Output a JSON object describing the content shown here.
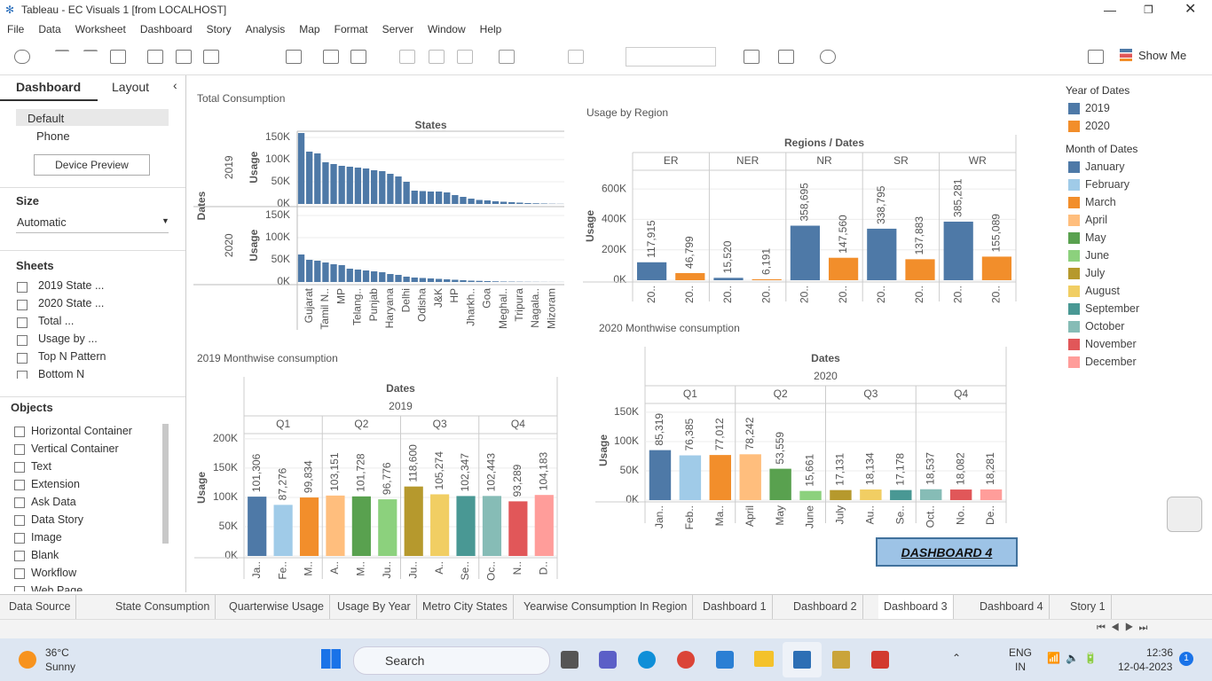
{
  "window": {
    "title": "Tableau - EC Visuals 1 [from LOCALHOST]"
  },
  "menu": [
    "File",
    "Data",
    "Worksheet",
    "Dashboard",
    "Story",
    "Analysis",
    "Map",
    "Format",
    "Server",
    "Window",
    "Help"
  ],
  "toolbar": {
    "show_me": "Show Me"
  },
  "side_panel": {
    "tabs": [
      "Dashboard",
      "Layout"
    ],
    "devices": [
      "Default",
      "Phone"
    ],
    "device_preview": "Device Preview",
    "size_heading": "Size",
    "size_value": "Automatic",
    "sheets_heading": "Sheets",
    "sheets": [
      "2019 State ...",
      "2020 State ...",
      "Total ...",
      "Usage by ...",
      "Top N Pattern",
      "Bottom N"
    ],
    "objects_heading": "Objects",
    "objects": [
      "Horizontal Container",
      "Vertical Container",
      "Text",
      "Extension",
      "Ask Data",
      "Data Story",
      "Image",
      "Blank",
      "Workflow",
      "Web Page"
    ]
  },
  "chart_data": [
    {
      "type": "small_multiples_bar",
      "title": "Total Consumption",
      "column_header": "States",
      "row_header": "Dates",
      "y_label": "Usage",
      "categories": [
        null,
        "Gujarat",
        null,
        "Tamil N..",
        null,
        "MP",
        null,
        "Telang..",
        null,
        "Punjab",
        null,
        "Haryana",
        null,
        "Delhi",
        null,
        "Odisha",
        null,
        "J&K",
        null,
        "HP",
        null,
        "Jharkh..",
        null,
        "Goa",
        null,
        "Meghal..",
        null,
        "Tripura",
        null,
        "Nagala..",
        null,
        "Mizoram",
        null
      ],
      "series": [
        {
          "name": "2019",
          "color": "#4e79a7",
          "values": [
            160000,
            118000,
            114000,
            94000,
            90000,
            86000,
            84000,
            82000,
            80000,
            76000,
            74000,
            68000,
            62000,
            50000,
            30000,
            29000,
            28000,
            28000,
            26000,
            20000,
            16000,
            12000,
            9000,
            8000,
            6000,
            5000,
            4000,
            3000,
            2000,
            1500,
            1000,
            500,
            300
          ]
        },
        {
          "name": "2020",
          "color": "#4e79a7",
          "values": [
            62000,
            50000,
            48000,
            44000,
            40000,
            38000,
            30000,
            28000,
            26000,
            24000,
            22000,
            18000,
            16000,
            12000,
            10000,
            9000,
            8000,
            7000,
            6000,
            5000,
            4000,
            3000,
            2500,
            2000,
            1500,
            1000,
            800,
            600,
            400,
            300,
            200,
            150,
            100
          ]
        }
      ],
      "ylim": [
        0,
        165000
      ],
      "yticks": [
        {
          "value": 0,
          "label": "0K"
        },
        {
          "value": 50000,
          "label": "50K"
        },
        {
          "value": 100000,
          "label": "100K"
        },
        {
          "value": 150000,
          "label": "150K"
        }
      ]
    },
    {
      "type": "grouped_bar",
      "title": "Usage by Region",
      "column_header": "Regions / Dates",
      "y_label": "Usage",
      "categories": [
        "ER",
        "NER",
        "NR",
        "SR",
        "WR"
      ],
      "series": [
        {
          "name": "2019",
          "color": "#4e79a7",
          "values": [
            117915,
            15520,
            358695,
            338795,
            385281
          ],
          "value_labels": [
            "117,915",
            "15,520",
            "358,695",
            "338,795",
            "385,281"
          ],
          "tick_labels": [
            "20..",
            "20..",
            "20..",
            "20..",
            "20.."
          ]
        },
        {
          "name": "2020",
          "color": "#f28e2b",
          "values": [
            46799,
            6191,
            147560,
            137883,
            155089
          ],
          "value_labels": [
            "46,799",
            "6,191",
            "147,560",
            "137,883",
            "155,089"
          ],
          "tick_labels": [
            "20..",
            "20..",
            "20..",
            "20..",
            "20.."
          ]
        }
      ],
      "ylim": [
        0,
        700000
      ],
      "yticks": [
        {
          "value": 0,
          "label": "0K"
        },
        {
          "value": 200000,
          "label": "200K"
        },
        {
          "value": 400000,
          "label": "400K"
        },
        {
          "value": 600000,
          "label": "600K"
        }
      ]
    },
    {
      "type": "bar",
      "title": "2019 Monthwise consumption",
      "column_header": "Dates",
      "year": "2019",
      "quarters": [
        "Q1",
        "Q2",
        "Q3",
        "Q4"
      ],
      "y_label": "Usage",
      "categories": [
        "Ja..",
        "Fe..",
        "M..",
        "A..",
        "M..",
        "Ju..",
        "Ju..",
        "A..",
        "Se..",
        "Oc..",
        "N..",
        "D.."
      ],
      "values": [
        101306,
        87276,
        99834,
        103151,
        101728,
        96776,
        118600,
        105274,
        102347,
        102443,
        93289,
        104183
      ],
      "value_labels": [
        "101,306",
        "87,276",
        "99,834",
        "103,151",
        "101,728",
        "96,776",
        "118,600",
        "105,274",
        "102,347",
        "102,443",
        "93,289",
        "104,183"
      ],
      "colors": [
        "#4e79a7",
        "#a0cbe8",
        "#f28e2b",
        "#ffbe7d",
        "#59a14f",
        "#8cd17d",
        "#b6992d",
        "#f1ce63",
        "#499894",
        "#86bcb6",
        "#e15759",
        "#ff9d9a"
      ],
      "ylim": [
        0,
        215000
      ],
      "yticks": [
        {
          "value": 0,
          "label": "0K"
        },
        {
          "value": 50000,
          "label": "50K"
        },
        {
          "value": 100000,
          "label": "100K"
        },
        {
          "value": 150000,
          "label": "150K"
        },
        {
          "value": 200000,
          "label": "200K"
        }
      ]
    },
    {
      "type": "bar",
      "title": "2020 Monthwise consumption",
      "column_header": "Dates",
      "year": "2020",
      "quarters": [
        "Q1",
        "Q2",
        "Q3",
        "Q4"
      ],
      "y_label": "Usage",
      "categories": [
        "Jan..",
        "Feb..",
        "Ma..",
        "April",
        "May",
        "June",
        "July",
        "Au..",
        "Se..",
        "Oct..",
        "No..",
        "De.."
      ],
      "values": [
        85319,
        76385,
        77012,
        78242,
        53559,
        15661,
        17131,
        18134,
        17178,
        18537,
        18082,
        18281
      ],
      "value_labels": [
        "85,319",
        "76,385",
        "77,012",
        "78,242",
        "53,559",
        "15,661",
        "17,131",
        "18,134",
        "17,178",
        "18,537",
        "18,082",
        "18,281"
      ],
      "colors": [
        "#4e79a7",
        "#a0cbe8",
        "#f28e2b",
        "#ffbe7d",
        "#59a14f",
        "#8cd17d",
        "#b6992d",
        "#f1ce63",
        "#499894",
        "#86bcb6",
        "#e15759",
        "#ff9d9a"
      ],
      "ylim": [
        0,
        165000
      ],
      "yticks": [
        {
          "value": 0,
          "label": "0K"
        },
        {
          "value": 50000,
          "label": "50K"
        },
        {
          "value": 100000,
          "label": "100K"
        },
        {
          "value": 150000,
          "label": "150K"
        }
      ]
    }
  ],
  "legends": [
    {
      "title": "Year of Dates",
      "items": [
        {
          "label": "2019",
          "color": "#4e79a7"
        },
        {
          "label": "2020",
          "color": "#f28e2b"
        }
      ]
    },
    {
      "title": "Month of Dates",
      "items": [
        {
          "label": "January",
          "color": "#4e79a7"
        },
        {
          "label": "February",
          "color": "#a0cbe8"
        },
        {
          "label": "March",
          "color": "#f28e2b"
        },
        {
          "label": "April",
          "color": "#ffbe7d"
        },
        {
          "label": "May",
          "color": "#59a14f"
        },
        {
          "label": "June",
          "color": "#8cd17d"
        },
        {
          "label": "July",
          "color": "#b6992d"
        },
        {
          "label": "August",
          "color": "#f1ce63"
        },
        {
          "label": "September",
          "color": "#499894"
        },
        {
          "label": "October",
          "color": "#86bcb6"
        },
        {
          "label": "November",
          "color": "#e15759"
        },
        {
          "label": "December",
          "color": "#ff9d9a"
        }
      ]
    }
  ],
  "navigation_button": "DASHBOARD 4",
  "sheet_tabs": [
    {
      "label": "Data Source",
      "active": false
    },
    {
      "label": "State Consumption",
      "active": false
    },
    {
      "label": "Quarterwise Usage",
      "active": false
    },
    {
      "label": "Usage By Year",
      "active": false
    },
    {
      "label": "Metro City States",
      "active": false
    },
    {
      "label": "Yearwise Consumption In Region",
      "active": false
    },
    {
      "label": "Dashboard 1",
      "active": false
    },
    {
      "label": "Dashboard 2",
      "active": false
    },
    {
      "label": "Dashboard 3",
      "active": true
    },
    {
      "label": "Dashboard 4",
      "active": false
    },
    {
      "label": "Story 1",
      "active": false
    }
  ],
  "taskbar": {
    "temperature": "36°C",
    "weather": "Sunny",
    "search": "Search",
    "language": "ENG",
    "region": "IN",
    "time": "12:36",
    "date": "12-04-2023",
    "notifications": 1
  }
}
